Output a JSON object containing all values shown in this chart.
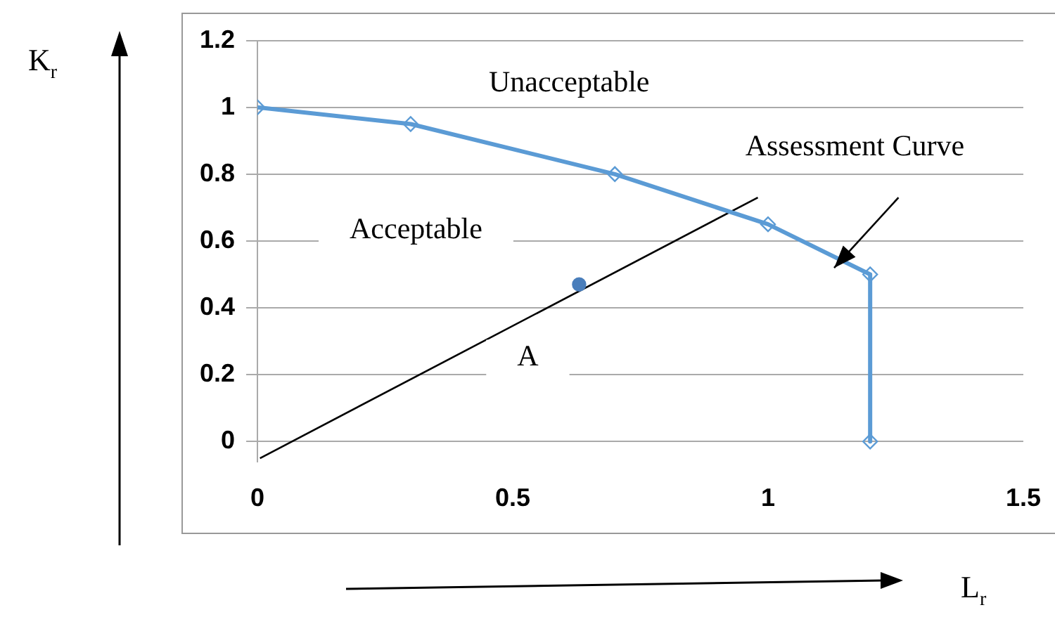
{
  "chart_data": {
    "type": "line",
    "xlabel": "L$_{r}$",
    "ylabel": "K$_{r}$",
    "xlim": [
      0,
      1.5
    ],
    "xticks": [
      0,
      0.5,
      1,
      1.5
    ],
    "ylim": [
      -0.06,
      1.2
    ],
    "yticks": [
      0,
      0.2,
      0.4,
      0.6,
      0.8,
      1,
      1.2
    ],
    "grid": "y",
    "legend": false,
    "series": [
      {
        "color": "#5b9bd5",
        "marker": "diamond",
        "x": [
          0,
          0.3,
          0.7,
          1,
          1.2,
          1.2
        ],
        "values": [
          1,
          0.95,
          0.8,
          0.65,
          0.5,
          0
        ]
      },
      {
        "type": "scatter",
        "color": "#4a7ebb",
        "marker": "circle",
        "x": [
          0.63
        ],
        "values": [
          0.47
        ]
      },
      {
        "color": "#000000",
        "marker": "none",
        "x": [
          0.005,
          0.98
        ],
        "values": [
          -0.05,
          0.73
        ]
      }
    ],
    "annotations": [
      "Unacceptable",
      "Acceptable",
      "A",
      "Assessment Curve"
    ]
  }
}
